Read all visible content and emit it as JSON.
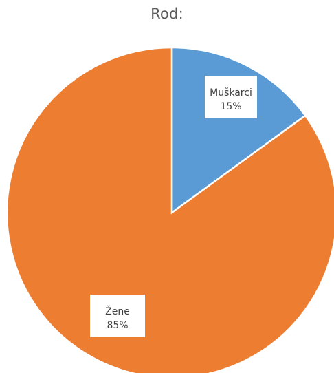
{
  "chart_data": {
    "type": "pie",
    "title": "Rod:",
    "slices": [
      {
        "label": "Muškarci",
        "value": 15,
        "value_label": "15%",
        "color": "#5B9BD5"
      },
      {
        "label": "Žene",
        "value": 85,
        "value_label": "85%",
        "color": "#ED7D31"
      }
    ],
    "start_angle_deg": 0,
    "direction": "clockwise",
    "legend": "none"
  }
}
